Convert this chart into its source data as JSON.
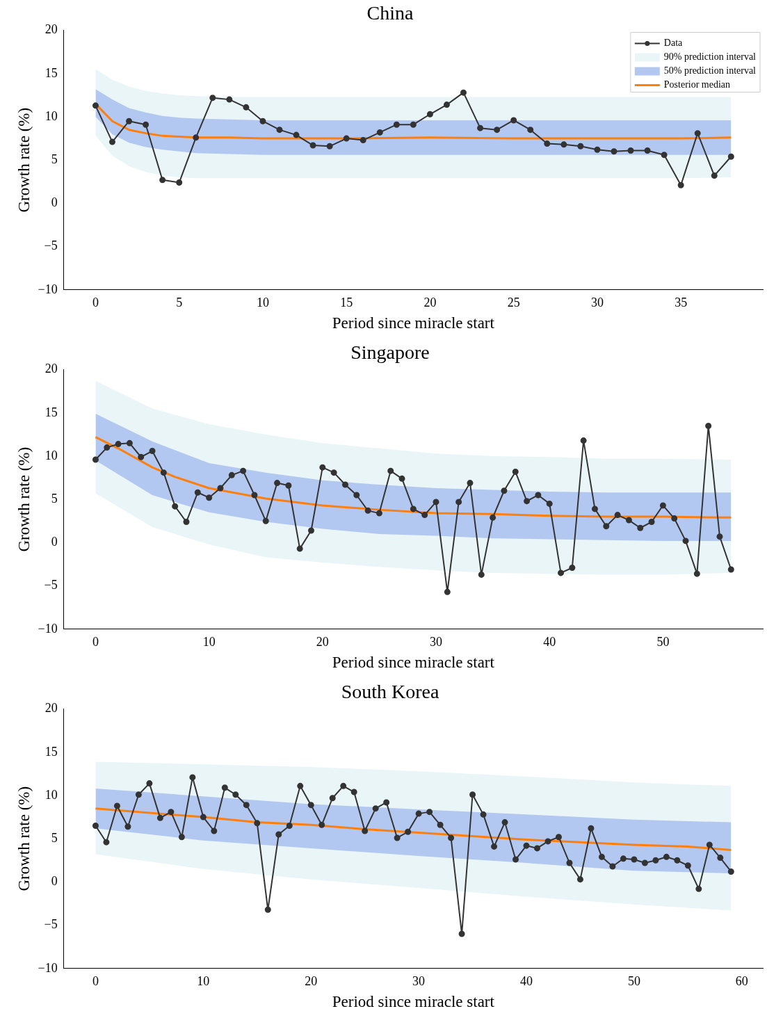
{
  "chart_data": [
    {
      "type": "line",
      "title": "China",
      "xlabel": "Period since miracle start",
      "ylabel": "Growth rate (%)",
      "xlim": [
        -1.9,
        39.9
      ],
      "xticks": [
        0,
        5,
        10,
        15,
        20,
        25,
        30,
        35
      ],
      "ylim": [
        -10,
        20
      ],
      "yticks": [
        -10,
        -5,
        0,
        5,
        10,
        15,
        20
      ],
      "grid": false,
      "legend": "top right",
      "x": [
        0,
        1,
        2,
        3,
        4,
        5,
        6,
        7,
        8,
        9,
        10,
        11,
        12,
        13,
        14,
        15,
        16,
        17,
        18,
        19,
        20,
        21,
        22,
        23,
        24,
        25,
        26,
        27,
        28,
        29,
        30,
        31,
        32,
        33,
        34,
        35,
        36,
        37,
        38
      ],
      "series": [
        {
          "name": "Data",
          "type": "line",
          "color": "#333333",
          "marker": "circle",
          "values": [
            11.3,
            7.1,
            9.5,
            9.1,
            2.7,
            2.4,
            7.6,
            12.2,
            12.0,
            11.1,
            9.5,
            8.5,
            7.9,
            6.7,
            6.6,
            7.5,
            7.3,
            8.2,
            9.1,
            9.1,
            10.3,
            11.4,
            12.8,
            8.7,
            8.5,
            9.6,
            8.5,
            6.9,
            6.8,
            6.6,
            6.2,
            6.0,
            6.1,
            6.1,
            5.6,
            2.1,
            8.1,
            3.2,
            5.4
          ]
        },
        {
          "name": "90% prediction interval",
          "type": "line",
          "color": "#eaf5f8",
          "marker": "none",
          "x": [
            0,
            1,
            2,
            3,
            4,
            5,
            6,
            8,
            10,
            15,
            20,
            25,
            30,
            35,
            38
          ],
          "values": [
            null,
            null,
            null,
            null,
            null,
            null,
            null,
            null,
            null,
            null,
            null,
            null,
            null,
            null,
            null
          ],
          "lower": [
            7.8,
            5.5,
            4.3,
            3.6,
            3.2,
            3.0,
            2.9,
            2.9,
            2.9,
            2.9,
            2.9,
            2.9,
            2.9,
            2.9,
            3.0
          ],
          "upper": [
            15.5,
            14.3,
            13.5,
            13.0,
            12.7,
            12.5,
            12.4,
            12.3,
            12.3,
            12.3,
            12.3,
            12.3,
            12.3,
            12.3,
            12.3
          ]
        },
        {
          "name": "50% prediction interval",
          "type": "line",
          "color": "#b3c8f0",
          "marker": "none",
          "x": [
            0,
            1,
            2,
            3,
            4,
            5,
            6,
            8,
            10,
            15,
            20,
            25,
            30,
            35,
            38
          ],
          "values": [
            null,
            null,
            null,
            null,
            null,
            null,
            null,
            null,
            null,
            null,
            null,
            null,
            null,
            null,
            null
          ],
          "lower": [
            10.0,
            8.0,
            7.0,
            6.5,
            6.2,
            6.0,
            5.8,
            5.7,
            5.6,
            5.6,
            5.6,
            5.6,
            5.6,
            5.6,
            5.6
          ],
          "upper": [
            13.2,
            12.0,
            11.0,
            10.5,
            10.1,
            9.9,
            9.8,
            9.7,
            9.6,
            9.6,
            9.6,
            9.6,
            9.6,
            9.6,
            9.6
          ]
        },
        {
          "name": "Posterior median",
          "type": "line",
          "color": "#ff7f0e",
          "marker": "none",
          "x": [
            0,
            1,
            2,
            3,
            4,
            5,
            6,
            8,
            10,
            15,
            20,
            25,
            30,
            35,
            38
          ],
          "values": [
            11.5,
            9.5,
            8.5,
            8.1,
            7.8,
            7.7,
            7.6,
            7.6,
            7.5,
            7.5,
            7.6,
            7.5,
            7.5,
            7.5,
            7.6
          ]
        }
      ]
    },
    {
      "type": "line",
      "title": "Singapore",
      "xlabel": "Period since miracle start",
      "ylabel": "Growth rate (%)",
      "xlim": [
        -2.8,
        58.8
      ],
      "xticks": [
        0,
        10,
        20,
        30,
        40,
        50
      ],
      "ylim": [
        -10,
        20
      ],
      "yticks": [
        -10,
        -5,
        0,
        5,
        10,
        15,
        20
      ],
      "grid": false,
      "x": [
        0,
        1,
        2,
        3,
        4,
        5,
        6,
        7,
        8,
        9,
        10,
        11,
        12,
        13,
        14,
        15,
        16,
        17,
        18,
        19,
        20,
        21,
        22,
        23,
        24,
        25,
        26,
        27,
        28,
        29,
        30,
        31,
        32,
        33,
        34,
        35,
        36,
        37,
        38,
        39,
        40,
        41,
        42,
        43,
        44,
        45,
        46,
        47,
        48,
        49,
        50,
        51,
        52,
        53,
        54,
        55,
        56
      ],
      "series": [
        {
          "type": "line",
          "color": "#333333",
          "marker": "circle",
          "values": [
            9.6,
            11.0,
            11.4,
            11.5,
            9.9,
            10.6,
            8.1,
            4.2,
            2.4,
            5.8,
            5.2,
            6.3,
            7.8,
            8.3,
            5.5,
            2.5,
            6.9,
            6.6,
            -0.7,
            1.4,
            8.7,
            8.1,
            6.7,
            5.5,
            3.7,
            3.4,
            8.3,
            7.4,
            3.9,
            3.2,
            4.7,
            -5.7,
            4.7,
            6.9,
            -3.7,
            2.9,
            6.0,
            8.2,
            4.8,
            5.5,
            4.5,
            -3.5,
            -2.9,
            11.8,
            3.9,
            1.9,
            3.2,
            2.6,
            1.7,
            2.4,
            4.3,
            2.8,
            0.2,
            -3.6,
            13.5,
            0.7,
            -3.1
          ]
        },
        {
          "type": "line",
          "color": "#eaf5f8",
          "marker": "none",
          "x": [
            0,
            5,
            10,
            15,
            20,
            25,
            30,
            35,
            40,
            45,
            50,
            56
          ],
          "values": [
            null,
            null,
            null,
            null,
            null,
            null,
            null,
            null,
            null,
            null,
            null,
            null
          ],
          "lower": [
            5.7,
            1.8,
            -0.2,
            -1.7,
            -2.3,
            -2.8,
            -3.2,
            -3.5,
            -3.6,
            -3.7,
            -3.7,
            -3.5
          ],
          "upper": [
            18.7,
            15.5,
            13.7,
            12.5,
            11.5,
            10.9,
            10.3,
            10.0,
            9.9,
            9.7,
            9.7,
            9.6
          ]
        },
        {
          "type": "line",
          "color": "#b3c8f0",
          "marker": "none",
          "x": [
            0,
            5,
            10,
            15,
            20,
            25,
            30,
            35,
            40,
            45,
            50,
            56
          ],
          "values": [
            null,
            null,
            null,
            null,
            null,
            null,
            null,
            null,
            null,
            null,
            null,
            null
          ],
          "lower": [
            9.5,
            5.5,
            3.5,
            2.4,
            1.6,
            1.0,
            0.8,
            0.5,
            0.4,
            0.3,
            0.2,
            0.2
          ],
          "upper": [
            14.9,
            11.7,
            9.2,
            8.1,
            7.2,
            6.7,
            6.3,
            6.1,
            5.9,
            5.8,
            5.8,
            5.8
          ]
        },
        {
          "type": "line",
          "color": "#ff7f0e",
          "marker": "none",
          "x": [
            0,
            2,
            5,
            7,
            10,
            15,
            20,
            25,
            30,
            35,
            40,
            45,
            50,
            56
          ],
          "values": [
            12.2,
            10.9,
            8.7,
            7.6,
            6.3,
            5.1,
            4.3,
            3.8,
            3.4,
            3.3,
            3.1,
            3.0,
            3.0,
            2.9
          ]
        }
      ]
    },
    {
      "type": "line",
      "title": "South Korea",
      "xlabel": "Period since miracle start",
      "ylabel": "Growth rate (%)",
      "xlim": [
        -2.95,
        61.95
      ],
      "xticks": [
        0,
        10,
        20,
        30,
        40,
        50,
        60
      ],
      "ylim": [
        -10,
        20
      ],
      "yticks": [
        -10,
        -5,
        0,
        5,
        10,
        15,
        20
      ],
      "grid": false,
      "x": [
        0,
        1,
        2,
        3,
        4,
        5,
        6,
        7,
        8,
        9,
        10,
        11,
        12,
        13,
        14,
        15,
        16,
        17,
        18,
        19,
        20,
        21,
        22,
        23,
        24,
        25,
        26,
        27,
        28,
        29,
        30,
        31,
        32,
        33,
        34,
        35,
        36,
        37,
        38,
        39,
        40,
        41,
        42,
        43,
        44,
        45,
        46,
        47,
        48,
        49,
        50,
        51,
        52,
        53,
        54,
        55,
        56,
        57,
        58,
        59
      ],
      "series": [
        {
          "type": "line",
          "color": "#333333",
          "marker": "circle",
          "values": [
            6.5,
            4.6,
            8.8,
            6.4,
            10.1,
            11.4,
            7.4,
            8.1,
            5.2,
            12.1,
            7.5,
            5.9,
            10.9,
            10.1,
            8.9,
            6.8,
            -3.2,
            5.5,
            6.5,
            11.1,
            8.9,
            6.6,
            9.7,
            11.1,
            10.4,
            5.9,
            8.5,
            9.2,
            5.1,
            5.8,
            7.9,
            8.1,
            6.6,
            5.1,
            -6.0,
            10.1,
            7.8,
            4.1,
            6.9,
            2.6,
            4.2,
            3.9,
            4.7,
            5.2,
            2.2,
            0.3,
            6.2,
            2.9,
            1.8,
            2.7,
            2.6,
            2.2,
            2.5,
            2.9,
            2.5,
            1.9,
            -0.8,
            4.3,
            2.8,
            1.2
          ]
        },
        {
          "type": "line",
          "color": "#eaf5f8",
          "marker": "none",
          "x": [
            0,
            10,
            20,
            30,
            40,
            50,
            59
          ],
          "values": [
            null,
            null,
            null,
            null,
            null,
            null,
            null
          ],
          "lower": [
            3.2,
            1.5,
            0.3,
            -0.7,
            -1.7,
            -2.6,
            -3.3
          ],
          "upper": [
            13.9,
            13.6,
            13.3,
            12.8,
            12.2,
            11.5,
            11.1
          ]
        },
        {
          "type": "line",
          "color": "#b3c8f0",
          "marker": "none",
          "x": [
            0,
            10,
            20,
            30,
            40,
            50,
            59
          ],
          "values": [
            null,
            null,
            null,
            null,
            null,
            null,
            null
          ],
          "lower": [
            6.2,
            4.8,
            3.9,
            3.0,
            2.2,
            1.3,
            1.0
          ],
          "upper": [
            10.8,
            9.9,
            9.0,
            8.4,
            7.8,
            7.2,
            6.9
          ]
        },
        {
          "type": "line",
          "color": "#ff7f0e",
          "marker": "none",
          "x": [
            0,
            5,
            10,
            15,
            20,
            25,
            30,
            35,
            40,
            45,
            50,
            55,
            59
          ],
          "values": [
            8.5,
            8.0,
            7.5,
            6.9,
            6.6,
            6.1,
            5.7,
            5.3,
            4.9,
            4.6,
            4.3,
            4.1,
            3.7
          ]
        }
      ]
    }
  ]
}
